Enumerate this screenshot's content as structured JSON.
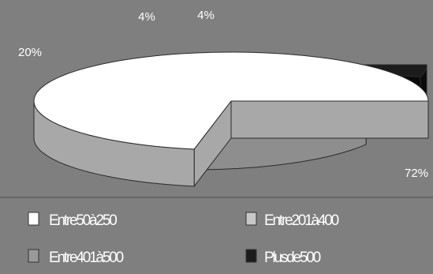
{
  "chart_data": {
    "type": "pie",
    "title": "",
    "slices": [
      {
        "label": "Entre50à250",
        "value": 72,
        "value_label": "72%",
        "color": "#ffffff",
        "side_color": "#a8a8a8"
      },
      {
        "label": "Entre201à400",
        "value": 20,
        "value_label": "20%",
        "color": "#c7c7c7",
        "side_color": "#8e8e8e"
      },
      {
        "label": "Entre401à500",
        "value": 4,
        "value_label": "4%",
        "color": "#9a9a9a",
        "side_color": "#6e6e6e"
      },
      {
        "label": "Plusde500",
        "value": 4,
        "value_label": "4%",
        "color": "#1c1c1c",
        "side_color": "#0a0a0a"
      }
    ],
    "legend_position": "bottom",
    "three_d": true,
    "exploded": true
  }
}
